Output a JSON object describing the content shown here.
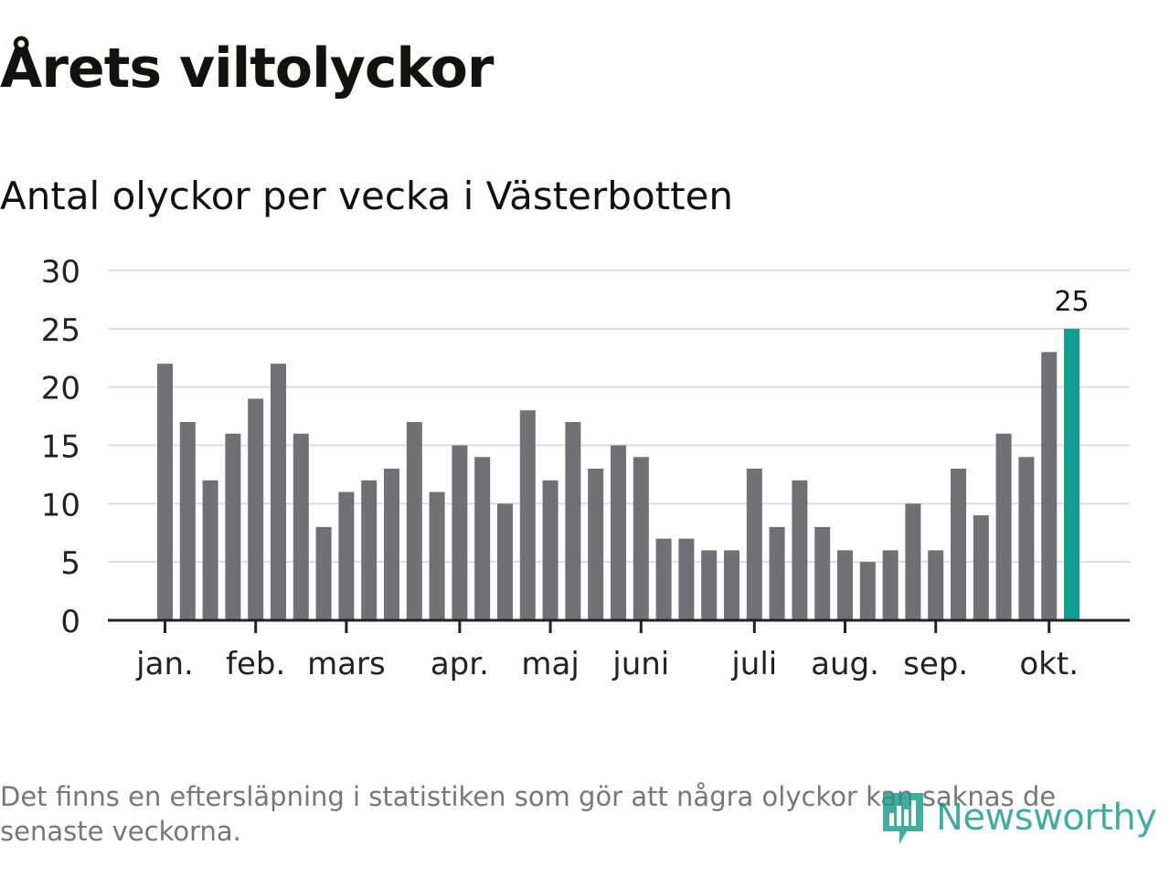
{
  "title": "Årets viltolyckor",
  "subtitle": "Antal olyckor per vecka i Västerbotten",
  "footnote": "Det finns en eftersläpning i statistiken som gör att några olyckor kan saknas de senaste veckorna.",
  "brand": "Newsworthy",
  "colors": {
    "bar": "#707075",
    "highlight": "#0f9e91",
    "grid": "#dcdcdc",
    "axis": "#222222",
    "brand": "#1a9a8a"
  },
  "chart_data": {
    "type": "bar",
    "title": "Antal olyckor per vecka i Västerbotten",
    "xlabel": "",
    "ylabel": "",
    "ylim": [
      0,
      30
    ],
    "yticks": [
      0,
      5,
      10,
      15,
      20,
      25,
      30
    ],
    "grid": true,
    "values": [
      22,
      17,
      12,
      16,
      19,
      22,
      16,
      8,
      11,
      12,
      13,
      17,
      11,
      15,
      14,
      10,
      18,
      12,
      17,
      13,
      15,
      14,
      7,
      7,
      6,
      6,
      13,
      8,
      12,
      8,
      6,
      5,
      6,
      10,
      6,
      13,
      9,
      16,
      14,
      23,
      25
    ],
    "highlight_index": 40,
    "highlight_label": "25",
    "month_ticks": [
      {
        "label": "jan.",
        "index": 0
      },
      {
        "label": "feb.",
        "index": 4
      },
      {
        "label": "mars",
        "index": 8
      },
      {
        "label": "apr.",
        "index": 13
      },
      {
        "label": "maj",
        "index": 17
      },
      {
        "label": "juni",
        "index": 21
      },
      {
        "label": "juli",
        "index": 26
      },
      {
        "label": "aug.",
        "index": 30
      },
      {
        "label": "sep.",
        "index": 34
      },
      {
        "label": "okt.",
        "index": 39
      }
    ]
  }
}
